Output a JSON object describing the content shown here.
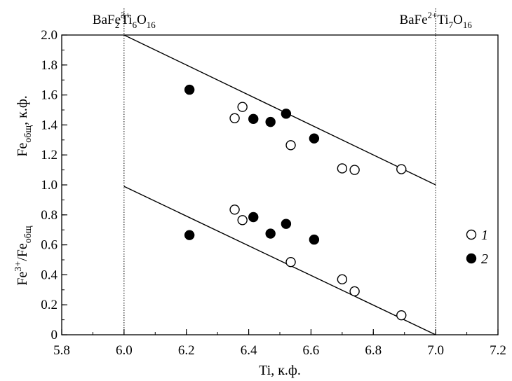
{
  "chart_data": {
    "type": "scatter",
    "xlabel": "Ti, к.ф.",
    "ylabel_upper": {
      "base": "Fe",
      "sub": "общ",
      "tail": ", к.ф."
    },
    "ylabel_lower": {
      "base": "Fe",
      "sup": "3+",
      "mid": "/Fe",
      "sub": "общ"
    },
    "xlim": [
      5.8,
      7.2
    ],
    "ylim": [
      0,
      2.0
    ],
    "xticks": [
      "5.8",
      "6.0",
      "6.2",
      "6.4",
      "6.6",
      "6.8",
      "7.0",
      "7.2"
    ],
    "yticks": [
      "0",
      "0.2",
      "0.4",
      "0.6",
      "0.8",
      "1.0",
      "1.2",
      "1.4",
      "1.6",
      "1.8",
      "2.0"
    ],
    "series": [
      {
        "name": "1",
        "marker": "open-circle",
        "points": [
          [
            6.355,
            1.445
          ],
          [
            6.38,
            1.52
          ],
          [
            6.535,
            1.265
          ],
          [
            6.7,
            1.11
          ],
          [
            6.74,
            1.1
          ],
          [
            6.89,
            1.105
          ],
          [
            6.355,
            0.835
          ],
          [
            6.38,
            0.765
          ],
          [
            6.535,
            0.485
          ],
          [
            6.7,
            0.37
          ],
          [
            6.74,
            0.29
          ],
          [
            6.89,
            0.13
          ]
        ]
      },
      {
        "name": "2",
        "marker": "filled-circle",
        "points": [
          [
            6.21,
            1.635
          ],
          [
            6.415,
            1.44
          ],
          [
            6.47,
            1.42
          ],
          [
            6.52,
            1.475
          ],
          [
            6.61,
            1.31
          ],
          [
            6.21,
            0.665
          ],
          [
            6.415,
            0.785
          ],
          [
            6.47,
            0.675
          ],
          [
            6.52,
            0.74
          ],
          [
            6.61,
            0.635
          ]
        ]
      }
    ],
    "lines": [
      {
        "from": [
          6.0,
          2.0
        ],
        "to": [
          7.0,
          1.0
        ]
      },
      {
        "from": [
          6.0,
          0.99
        ],
        "to": [
          7.0,
          0.0
        ]
      }
    ],
    "vlines": [
      6.0,
      7.0
    ],
    "annotations": [
      {
        "at": 6.0,
        "parts": [
          "BaFe",
          "3+",
          "2",
          "Ti",
          "6",
          "O",
          "16"
        ]
      },
      {
        "at": 7.0,
        "parts": [
          "BaFe",
          "2+",
          "",
          "Ti",
          "7",
          "O",
          "16"
        ]
      }
    ],
    "legend": [
      {
        "marker": "open-circle",
        "label": "1"
      },
      {
        "marker": "filled-circle",
        "label": "2"
      }
    ],
    "legend_position": "right"
  },
  "colors": {
    "ink": "#000000",
    "background": "#ffffff"
  }
}
